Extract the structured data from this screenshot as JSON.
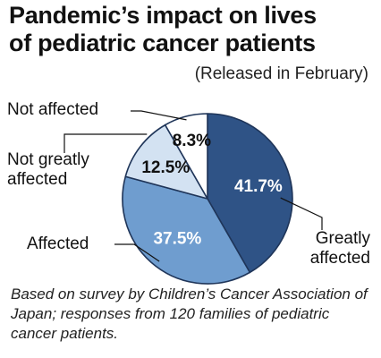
{
  "header": {
    "title_line1": "Pandemic’s impact on lives",
    "title_line2": "of pediatric cancer patients",
    "subtitle": "(Released in February)"
  },
  "chart_data": {
    "type": "pie",
    "categories": [
      "Greatly affected",
      "Affected",
      "Not greatly affected",
      "Not affected"
    ],
    "values": [
      41.7,
      37.5,
      12.5,
      8.3
    ],
    "value_labels": [
      "41.7%",
      "37.5%",
      "12.5%",
      "8.3%"
    ],
    "category_labels": {
      "greatly_affected": "Greatly affected",
      "affected": "Affected",
      "not_greatly_affected": "Not greatly affected",
      "not_affected": "Not affected"
    },
    "colors": [
      "#2f5386",
      "#6f9dcf",
      "#d3e2f2",
      "#ffffff"
    ],
    "outline_color": "#1f3559"
  },
  "footnote": "Based on survey by Children’s Cancer Association of Japan; responses from 120 families of pediatric cancer patients."
}
